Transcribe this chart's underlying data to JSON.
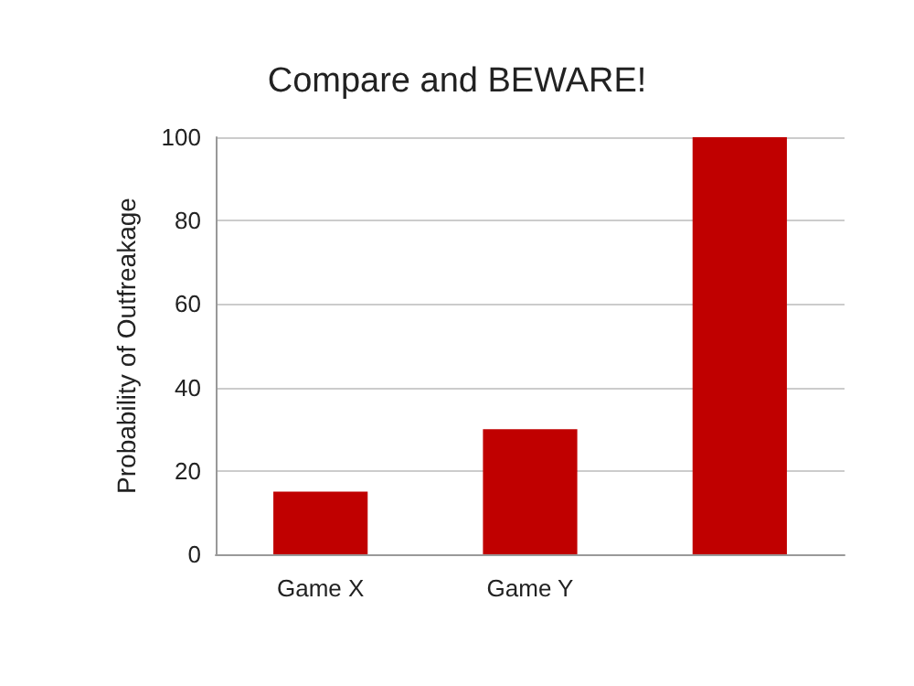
{
  "chart_data": {
    "type": "bar",
    "title": "Compare and BEWARE!",
    "ylabel": "Probability of Outfreakage",
    "categories": [
      "Game X",
      "Game Y",
      null
    ],
    "values": [
      15,
      30,
      100
    ],
    "color": "#c00000",
    "ylim": [
      0,
      100
    ],
    "yticks": [
      0,
      20,
      40,
      60,
      80,
      100
    ],
    "grid": "y"
  }
}
